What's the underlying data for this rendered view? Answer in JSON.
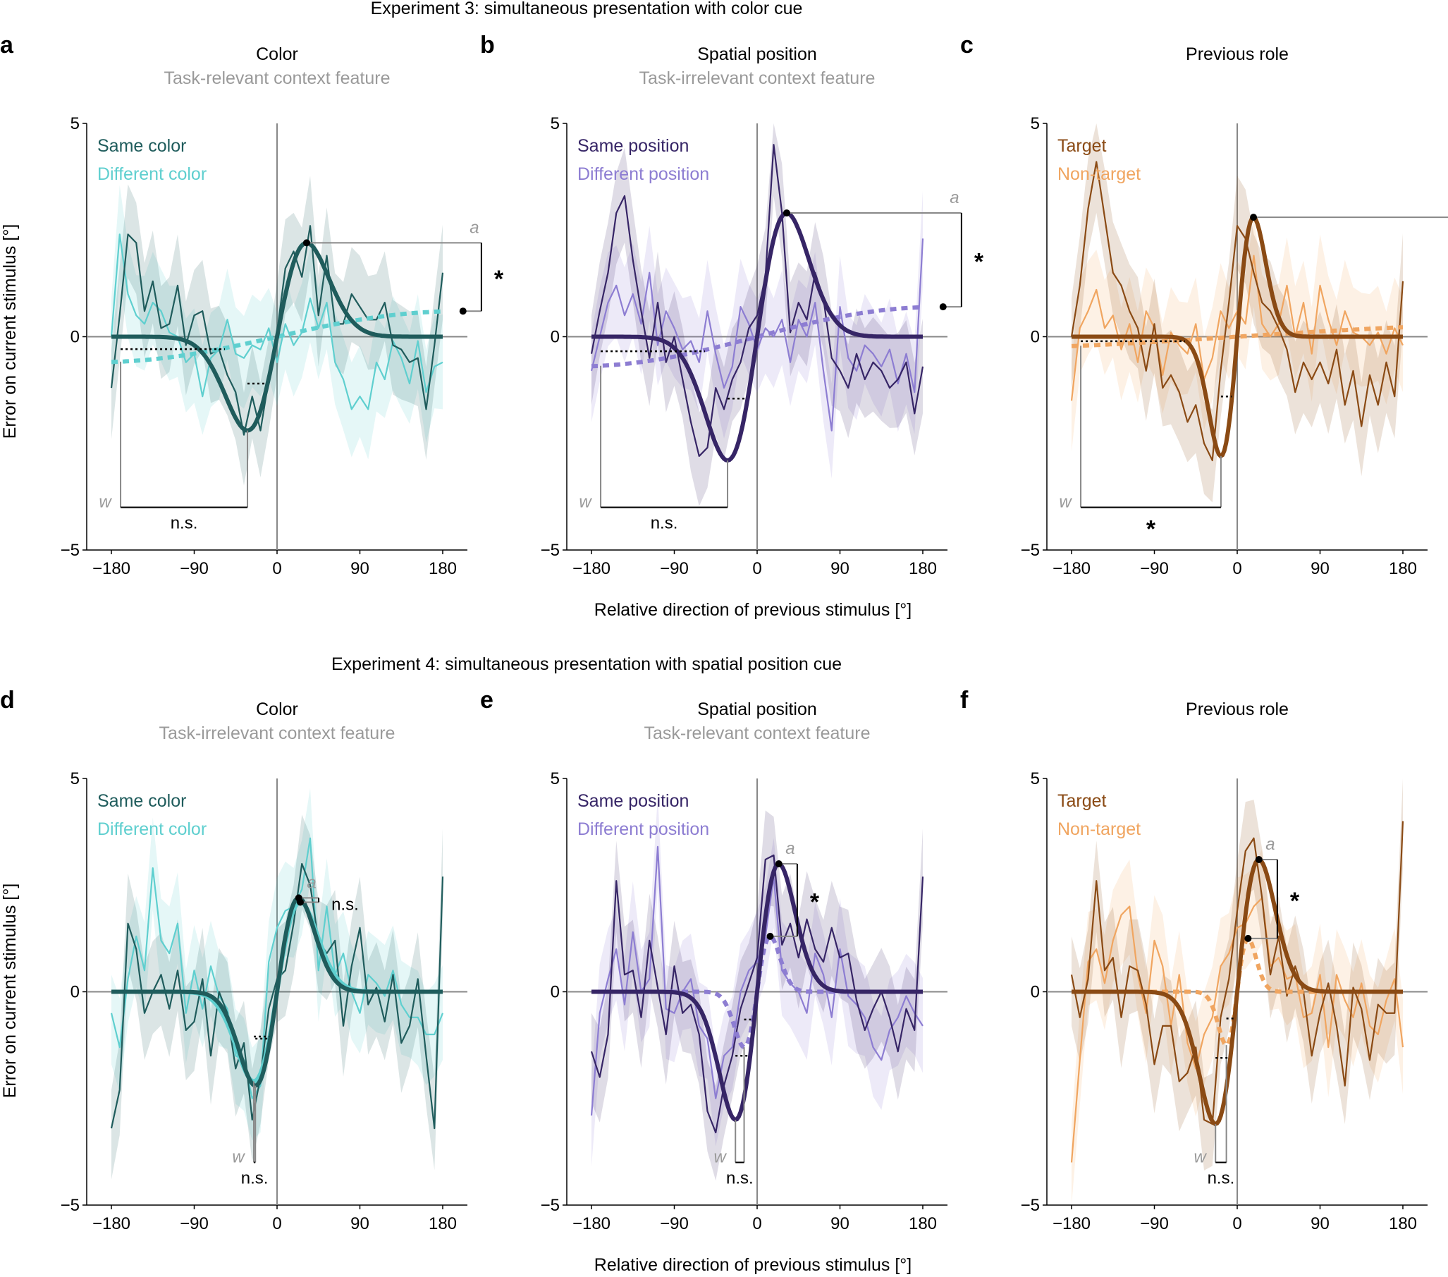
{
  "figure": {
    "exp3_title": "Experiment 3: simultaneous presentation with color cue",
    "exp4_title": "Experiment 4: simultaneous presentation with spatial position cue",
    "ylabel": "Error on current stimulus [°]",
    "xlabel": "Relative direction of previous stimulus [°]"
  },
  "colors": {
    "color_same": "#1f5c5c",
    "color_diff": "#5fcfcf",
    "pos_same": "#362566",
    "pos_diff": "#8d7dd2",
    "role_target": "#8a4a14",
    "role_nontarget": "#f0a560",
    "axis": "#888888"
  },
  "chart_data": [
    {
      "panel": "a",
      "type": "line",
      "title": "Color",
      "subtitle": "Task-relevant context feature",
      "xlim": [
        -180,
        180
      ],
      "ylim": [
        -5,
        5
      ],
      "xticks": [
        -180,
        -90,
        0,
        90,
        180
      ],
      "yticks": [
        -5,
        0,
        5
      ],
      "tick_labels_x": [
        "−180",
        "−90",
        "0",
        "90",
        "180"
      ],
      "tick_labels_y": [
        "−5",
        "0",
        "5"
      ],
      "palette": "color",
      "series": [
        {
          "name": "Same color",
          "fit": {
            "a": 2.2,
            "w": 0.022,
            "solid": true
          },
          "y": [
            -1.2,
            0.5,
            2.4,
            2.2,
            0.6,
            1.3,
            0.2,
            0.3,
            1.2,
            -0.2,
            0.5,
            0.6,
            -0.4,
            -0.3,
            -0.9,
            -1.3,
            -2.3,
            -1.4,
            -2.2,
            -1.0,
            0.1,
            1.6,
            2.0,
            1.4,
            2.6,
            0.5,
            1.9,
            0.3,
            0.3,
            1.0,
            0.7,
            0.4,
            0.4,
            0.8,
            -0.2,
            -0.3,
            -0.6,
            -0.5,
            -1.7,
            -0.2,
            1.5
          ]
        },
        {
          "name": "Different color",
          "fit": {
            "a": 0.6,
            "w": 0.0035,
            "solid": false
          },
          "y": [
            0.0,
            2.4,
            1.0,
            0.5,
            0.3,
            0.8,
            0.6,
            0.1,
            0.0,
            -0.6,
            -0.4,
            -1.4,
            -0.5,
            -0.3,
            0.4,
            -0.4,
            -0.5,
            -0.2,
            -0.3,
            0.2,
            -0.6,
            0.3,
            -0.2,
            0.1,
            0.9,
            0.2,
            0.8,
            -0.6,
            -1.0,
            -1.7,
            -1.4,
            -1.7,
            -0.6,
            -1.0,
            -0.1,
            -0.5,
            -1.1,
            -0.1,
            -1.3,
            -0.7,
            -0.6
          ]
        }
      ],
      "annotations": {
        "a_label": "a",
        "w_label": "w",
        "a_sig": "*",
        "w_sig": "n.s."
      }
    },
    {
      "panel": "b",
      "type": "line",
      "title": "Spatial position",
      "subtitle": "Task-irrelevant context feature",
      "xlim": [
        -180,
        180
      ],
      "ylim": [
        -5,
        5
      ],
      "xticks": [
        -180,
        -90,
        0,
        90,
        180
      ],
      "yticks": [
        -5,
        0,
        5
      ],
      "tick_labels_x": [
        "−180",
        "−90",
        "0",
        "90",
        "180"
      ],
      "tick_labels_y": [
        "−5",
        "0",
        "5"
      ],
      "palette": "pos",
      "series": [
        {
          "name": "Same position",
          "fit": {
            "a": 2.9,
            "w": 0.022,
            "solid": true
          },
          "y": [
            -0.4,
            0.6,
            1.5,
            2.9,
            3.3,
            1.8,
            0.6,
            -0.5,
            0.8,
            -0.6,
            0.0,
            -1.0,
            -2.0,
            -2.8,
            -2.6,
            -1.2,
            -1.7,
            -1.0,
            -0.6,
            0.2,
            0.5,
            1.4,
            4.5,
            2.9,
            0.1,
            0.8,
            0.4,
            1.5,
            0.9,
            -0.5,
            -0.8,
            -1.2,
            -0.4,
            -1.0,
            -0.6,
            -0.8,
            -1.2,
            -1.0,
            -0.6,
            -1.8,
            -0.7
          ]
        },
        {
          "name": "Different position",
          "fit": {
            "a": 0.7,
            "w": 0.0035,
            "solid": false
          },
          "y": [
            -0.8,
            0.0,
            0.8,
            1.2,
            0.5,
            1.0,
            0.3,
            1.5,
            -0.2,
            0.6,
            0.2,
            -0.3,
            -0.1,
            -0.6,
            0.6,
            -0.4,
            -1.2,
            -0.7,
            0.7,
            0.3,
            -0.3,
            0.2,
            0.0,
            0.4,
            -0.6,
            0.4,
            0.0,
            0.8,
            -0.8,
            -2.2,
            0.7,
            -0.5,
            -0.8,
            -0.2,
            -0.4,
            -0.7,
            -0.3,
            -1.1,
            -0.4,
            -1.3,
            2.3
          ]
        }
      ],
      "annotations": {
        "a_label": "a",
        "w_label": "w",
        "a_sig": "*",
        "w_sig": "n.s."
      }
    },
    {
      "panel": "c",
      "type": "line",
      "title": "Previous role",
      "subtitle": "",
      "xlim": [
        -180,
        180
      ],
      "ylim": [
        -5,
        5
      ],
      "xticks": [
        -180,
        -90,
        0,
        90,
        180
      ],
      "yticks": [
        -5,
        0,
        5
      ],
      "tick_labels_x": [
        "−180",
        "−90",
        "0",
        "90",
        "180"
      ],
      "tick_labels_y": [
        "−5",
        "0",
        "5"
      ],
      "palette": "role",
      "series": [
        {
          "name": "Target",
          "fit": {
            "a": 2.8,
            "w": 0.04,
            "solid": true
          },
          "y": [
            0.0,
            1.2,
            3.0,
            4.1,
            2.8,
            1.5,
            1.2,
            0.6,
            0.2,
            -0.8,
            0.3,
            -1.2,
            -0.9,
            -1.3,
            -2.0,
            -1.6,
            -2.5,
            -2.9,
            -0.8,
            0.8,
            2.6,
            2.3,
            1.5,
            0.8,
            0.6,
            0.2,
            -0.3,
            -1.3,
            -0.6,
            -1.0,
            -0.6,
            -1.1,
            -0.3,
            -1.6,
            -0.8,
            -2.1,
            -0.9,
            -1.6,
            -0.6,
            -1.4,
            1.3
          ]
        },
        {
          "name": "Non-target",
          "fit": {
            "a": 0.3,
            "w": 0.002,
            "solid": false
          },
          "y": [
            -1.5,
            0.2,
            0.6,
            1.1,
            0.2,
            0.5,
            -0.3,
            0.3,
            -0.6,
            0.6,
            0.2,
            -0.9,
            0.1,
            -0.2,
            -0.4,
            0.3,
            -1.0,
            -0.5,
            0.6,
            0.2,
            0.6,
            0.3,
            1.9,
            0.3,
            0.0,
            0.3,
            1.2,
            0.0,
            0.8,
            -0.4,
            1.2,
            0.4,
            -0.2,
            0.6,
            0.1,
            0.0,
            -0.2,
            0.1,
            -0.4,
            0.2,
            -0.2
          ]
        }
      ],
      "annotations": {
        "a_label": "a",
        "w_label": "w",
        "a_sig": "*",
        "w_sig": "*"
      }
    },
    {
      "panel": "d",
      "type": "line",
      "title": "Color",
      "subtitle": "Task-irrelevant context feature",
      "xlim": [
        -180,
        180
      ],
      "ylim": [
        -5,
        5
      ],
      "xticks": [
        -180,
        -90,
        0,
        90,
        180
      ],
      "yticks": [
        -5,
        0,
        5
      ],
      "tick_labels_x": [
        "−180",
        "−90",
        "0",
        "90",
        "180"
      ],
      "tick_labels_y": [
        "−5",
        "0",
        "5"
      ],
      "palette": "color",
      "series": [
        {
          "name": "Same color",
          "fit": {
            "a": 2.2,
            "w": 0.03,
            "solid": true
          },
          "y": [
            -3.2,
            -2.3,
            1.6,
            1.0,
            -0.5,
            0.0,
            0.4,
            -0.4,
            0.5,
            -0.9,
            -0.7,
            0.3,
            -1.5,
            0.0,
            -0.5,
            -1.8,
            -1.2,
            -3.0,
            -2.0,
            -0.4,
            0.3,
            0.5,
            1.6,
            3.0,
            2.5,
            1.2,
            0.9,
            1.2,
            -0.8,
            0.6,
            1.5,
            -0.3,
            0.1,
            -0.7,
            0.4,
            -1.2,
            -0.8,
            0.3,
            -1.5,
            -3.2,
            2.7
          ]
        },
        {
          "name": "Different color",
          "fit": {
            "a": 2.1,
            "w": 0.028,
            "solid": true
          },
          "y": [
            -0.5,
            -1.3,
            0.3,
            1.3,
            0.5,
            2.9,
            1.2,
            0.9,
            1.6,
            -0.5,
            0.5,
            -0.4,
            0.6,
            -0.1,
            -0.4,
            -1.5,
            -1.6,
            -2.5,
            -2.2,
            0.7,
            1.5,
            1.9,
            2.0,
            2.4,
            3.6,
            0.5,
            2.0,
            0.4,
            0.9,
            0.0,
            -0.5,
            0.4,
            0.2,
            -0.1,
            0.5,
            -0.3,
            -0.6,
            -0.6,
            -1.0,
            -1.0,
            -0.5
          ]
        }
      ],
      "annotations": {
        "a_label": "a",
        "w_label": "w",
        "a_sig": "n.s.",
        "w_sig": "n.s."
      }
    },
    {
      "panel": "e",
      "type": "line",
      "title": "Spatial position",
      "subtitle": "Task-relevant context feature",
      "xlim": [
        -180,
        180
      ],
      "ylim": [
        -5,
        5
      ],
      "xticks": [
        -180,
        -90,
        0,
        90,
        180
      ],
      "yticks": [
        -5,
        0,
        5
      ],
      "tick_labels_x": [
        "−180",
        "−90",
        "0",
        "90",
        "180"
      ],
      "tick_labels_y": [
        "−5",
        "0",
        "5"
      ],
      "palette": "pos",
      "series": [
        {
          "name": "Same position",
          "fit": {
            "a": 3.0,
            "w": 0.03,
            "solid": true
          },
          "y": [
            -1.4,
            -2.0,
            -1.0,
            2.6,
            0.4,
            0.5,
            -0.6,
            1.2,
            0.1,
            -1.0,
            0.6,
            -0.5,
            -0.3,
            -1.0,
            -2.8,
            -3.3,
            -2.2,
            -1.5,
            -0.4,
            0.2,
            0.8,
            3.1,
            3.2,
            1.1,
            1.6,
            0.8,
            1.7,
            1.0,
            0.7,
            1.5,
            0.8,
            0.9,
            -0.2,
            -0.9,
            -0.4,
            0.0,
            -0.6,
            -1.4,
            -0.4,
            -0.9,
            2.7
          ]
        },
        {
          "name": "Different position",
          "fit": {
            "a": 1.3,
            "w": 0.05,
            "solid": false
          },
          "y": [
            -2.9,
            -0.5,
            0.3,
            1.0,
            -0.3,
            1.4,
            0.0,
            0.3,
            3.4,
            -0.4,
            -0.5,
            0.0,
            0.3,
            -0.8,
            -1.1,
            -2.5,
            -1.5,
            -1.3,
            0.0,
            0.5,
            0.7,
            1.3,
            2.7,
            0.5,
            0.2,
            0.0,
            -0.5,
            0.9,
            0.4,
            -0.6,
            1.0,
            -0.1,
            -0.3,
            -0.6,
            -1.3,
            -1.6,
            -0.9,
            -0.6,
            -0.1,
            -0.5,
            -0.8
          ]
        }
      ],
      "annotations": {
        "a_label": "a",
        "w_label": "w",
        "a_sig": "*",
        "w_sig": "n.s."
      }
    },
    {
      "panel": "f",
      "type": "line",
      "title": "Previous role",
      "subtitle": "",
      "xlim": [
        -180,
        180
      ],
      "ylim": [
        -5,
        5
      ],
      "xticks": [
        -180,
        -90,
        0,
        90,
        180
      ],
      "yticks": [
        -5,
        0,
        5
      ],
      "tick_labels_x": [
        "−180",
        "−90",
        "0",
        "90",
        "180"
      ],
      "tick_labels_y": [
        "−5",
        "0",
        "5"
      ],
      "palette": "role",
      "series": [
        {
          "name": "Target",
          "fit": {
            "a": 3.1,
            "w": 0.03,
            "solid": true
          },
          "y": [
            0.4,
            -0.6,
            0.3,
            2.6,
            0.5,
            0.8,
            -0.6,
            0.6,
            0.5,
            -0.3,
            -1.7,
            -0.8,
            -0.8,
            -2.1,
            -1.9,
            -1.3,
            -3.0,
            -3.1,
            -0.6,
            0.3,
            1.9,
            3.3,
            3.6,
            2.2,
            0.4,
            1.3,
            -0.1,
            0.6,
            0.0,
            -1.5,
            -0.5,
            0.2,
            -0.8,
            -2.2,
            0.1,
            -0.4,
            -1.6,
            -0.3,
            -0.5,
            -0.5,
            4.0
          ]
        },
        {
          "name": "Non-target",
          "fit": {
            "a": 1.25,
            "w": 0.06,
            "solid": false
          },
          "y": [
            -4.0,
            -1.6,
            0.7,
            1.0,
            0.2,
            1.2,
            1.8,
            2.0,
            0.4,
            -0.5,
            1.2,
            0.6,
            -0.8,
            0.4,
            -1.2,
            -1.8,
            -1.0,
            -0.6,
            0.6,
            0.9,
            1.5,
            1.6,
            2.0,
            2.2,
            0.6,
            0.8,
            0.3,
            0.4,
            -0.6,
            -0.5,
            0.4,
            -1.3,
            0.4,
            -0.2,
            -0.6,
            0.2,
            -0.8,
            -1.0,
            -0.2,
            0.3,
            -1.3
          ]
        }
      ],
      "annotations": {
        "a_label": "a",
        "w_label": "w",
        "a_sig": "*",
        "w_sig": "n.s."
      }
    }
  ]
}
